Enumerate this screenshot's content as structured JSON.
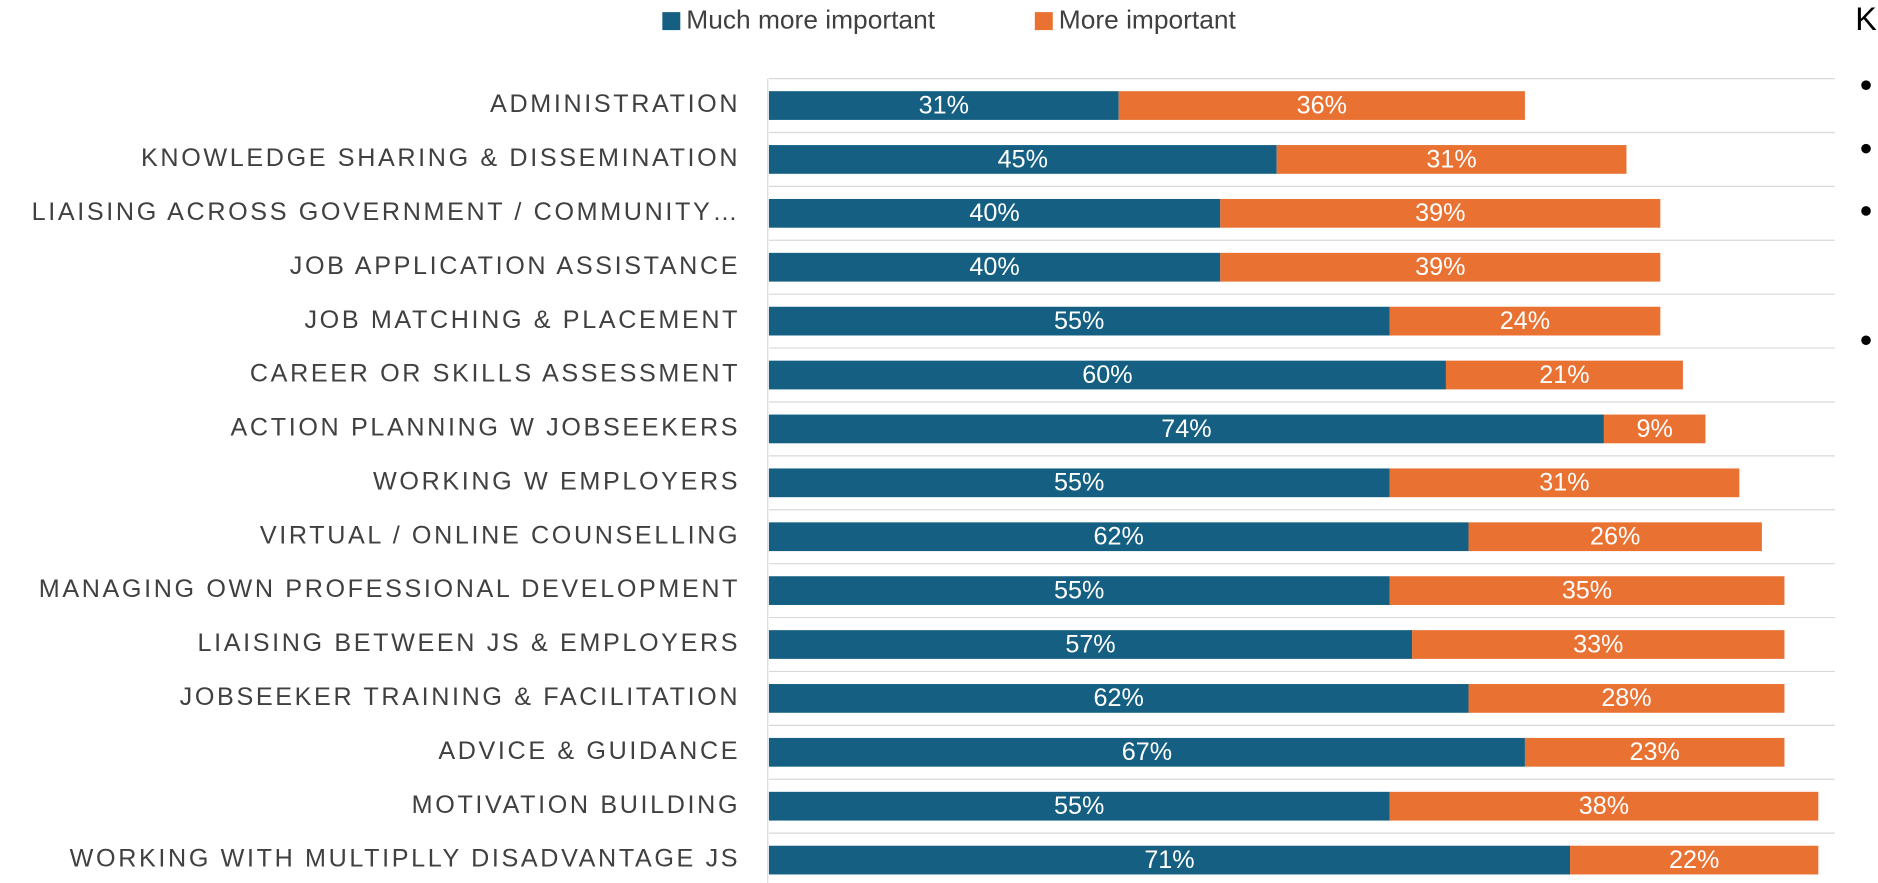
{
  "chart_data": {
    "type": "stacked-barh",
    "categories": [
      "ADMINISTRATION",
      "KNOWLEDGE SHARING & DISSEMINATION",
      "LIAISING ACROSS GOVERNMENT / COMMUNITY…",
      "JOB APPLICATION ASSISTANCE",
      "JOB MATCHING & PLACEMENT",
      "CAREER OR SKILLS ASSESSMENT",
      "ACTION PLANNING W JOBSEEKERS",
      "WORKING W EMPLOYERS",
      "VIRTUAL / ONLINE COUNSELLING",
      "MANAGING OWN PROFESSIONAL DEVELOPMENT",
      "LIAISING BETWEEN JS & EMPLOYERS",
      "JOBSEEKER TRAINING & FACILITATION",
      "ADVICE & GUIDANCE",
      "MOTIVATION BUILDING",
      "WORKING WITH MULTIPLLY DISADVANTAGE JS"
    ],
    "series": [
      {
        "name": "Much more important",
        "color": "#156082",
        "values": [
          31,
          45,
          40,
          40,
          55,
          60,
          74,
          55,
          62,
          55,
          57,
          62,
          67,
          55,
          71
        ],
        "value_labels": [
          "31%",
          "45%",
          "40%",
          "40%",
          "55%",
          "60%",
          "74%",
          "55%",
          "62%",
          "55%",
          "57%",
          "62%",
          "67%",
          "55%",
          "71%"
        ]
      },
      {
        "name": "More important",
        "color": "#e97132",
        "values": [
          36,
          31,
          39,
          39,
          24,
          21,
          9,
          31,
          26,
          35,
          33,
          28,
          23,
          38,
          22
        ],
        "value_labels": [
          "36%",
          "31%",
          "39%",
          "39%",
          "24%",
          "21%",
          "9%",
          "31%",
          "26%",
          "35%",
          "33%",
          "28%",
          "23%",
          "38%",
          "22%"
        ]
      }
    ],
    "xlim": [
      0,
      95
    ],
    "legend": "top"
  },
  "side_text": "K"
}
